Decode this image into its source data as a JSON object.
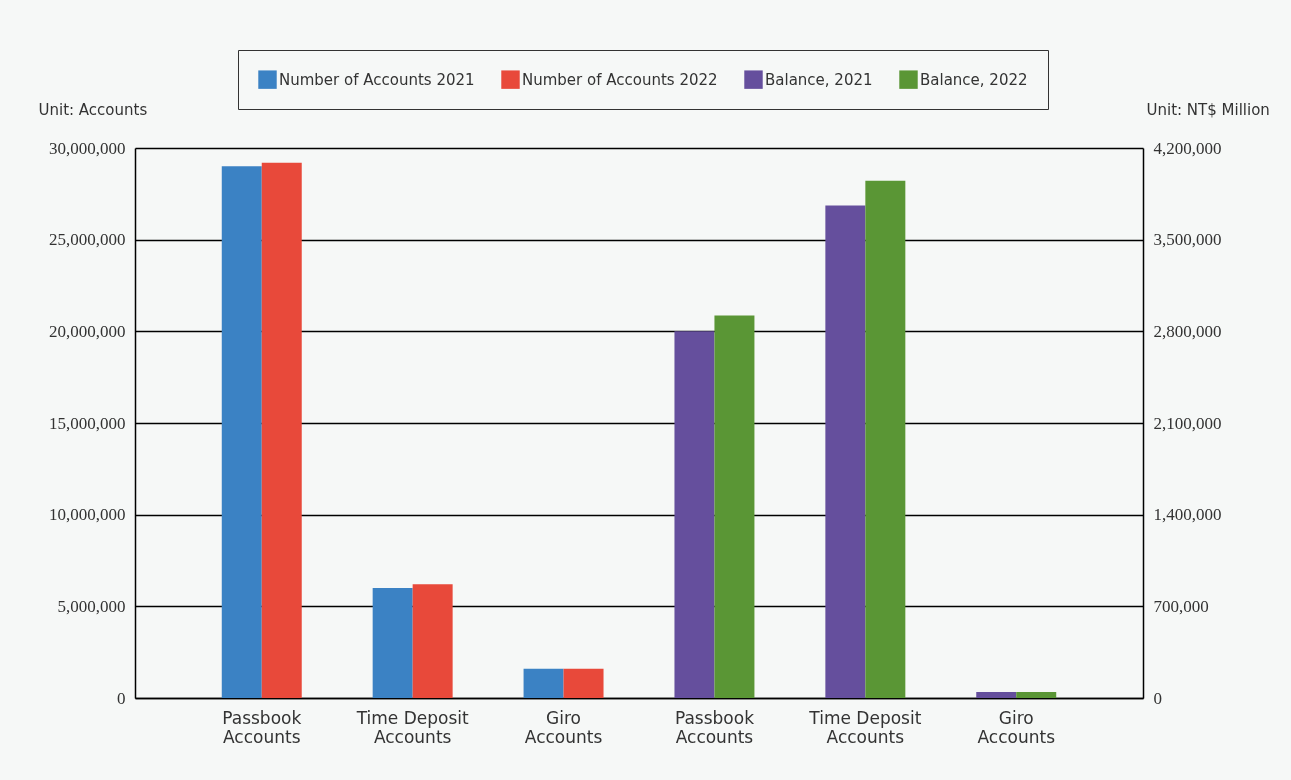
{
  "chart_data": {
    "type": "bar",
    "categories": [
      "Passbook Accounts",
      "Time Deposit Accounts",
      "Giro Accounts",
      "Passbook Accounts",
      "Time Deposit Accounts",
      "Giro Accounts"
    ],
    "series": [
      {
        "name": "Number of Accounts 2021",
        "color": "#3b82c4",
        "values": [
          29000000,
          6000000,
          1600000,
          null,
          null,
          null
        ]
      },
      {
        "name": "Number of Accounts 2022",
        "color": "#e8493a",
        "values": [
          29200000,
          6200000,
          1600000,
          null,
          null,
          null
        ]
      },
      {
        "name": "Balance, 2021",
        "color": "#654f9d",
        "axis": "y2",
        "values": [
          null,
          null,
          null,
          2800000,
          3760000,
          45000
        ]
      },
      {
        "name": "Balance, 2022",
        "color": "#5a9635",
        "axis": "y2",
        "values": [
          null,
          null,
          null,
          2920000,
          3950000,
          45000
        ]
      }
    ],
    "ylabel": "Unit: Accounts",
    "y2label": "Unit: NT$ Million",
    "ylim": [
      0,
      30000000
    ],
    "yticks": [
      0,
      {
        "value": 5000000,
        "label": "5,000,000"
      },
      {
        "value": 10000000,
        "label": "10,000,000"
      },
      {
        "value": 15000000,
        "label": "15,000,000"
      },
      {
        "value": 20000000,
        "label": "20,000,000"
      },
      {
        "value": 25000000,
        "label": "25,000,000"
      },
      {
        "value": 30000000,
        "label": "30,000,000"
      }
    ],
    "y2lim": [
      0,
      4200000
    ],
    "y2ticks": [
      0,
      {
        "value": 700000,
        "label": "700,000"
      },
      {
        "value": 1400000,
        "label": "1,400,000"
      },
      {
        "value": 2100000,
        "label": "2,100,000"
      },
      {
        "value": 2800000,
        "label": "2,800,000"
      },
      {
        "value": 3500000,
        "label": "3,500,000"
      },
      {
        "value": 4200000,
        "label": "4,200,000"
      }
    ],
    "grid": "y",
    "legend": "top"
  }
}
